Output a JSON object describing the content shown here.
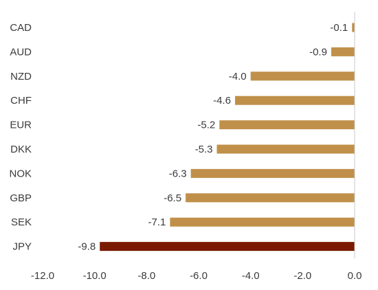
{
  "chart_data": {
    "type": "bar",
    "orientation": "horizontal",
    "categories": [
      "CAD",
      "AUD",
      "NZD",
      "CHF",
      "EUR",
      "DKK",
      "NOK",
      "GBP",
      "SEK",
      "JPY"
    ],
    "values": [
      -0.1,
      -0.9,
      -4.0,
      -4.6,
      -5.2,
      -5.3,
      -6.3,
      -6.5,
      -7.1,
      -9.8
    ],
    "value_labels": [
      "-0.1",
      "-0.9",
      "-4.0",
      "-4.6",
      "-5.2",
      "-5.3",
      "-6.3",
      "-6.5",
      "-7.1",
      "-9.8"
    ],
    "xlim": [
      -12.0,
      0.0
    ],
    "x_ticks": [
      "-12.0",
      "-10.0",
      "-8.0",
      "-6.0",
      "-4.0",
      "-2.0",
      "0.0"
    ],
    "x_tick_values": [
      -12,
      -10,
      -8,
      -6,
      -4,
      -2,
      0
    ],
    "title": "",
    "xlabel": "",
    "ylabel": "",
    "grid": false,
    "legend": "none",
    "colors": {
      "bar": "#c0904a",
      "highlight": "#7a1a00",
      "highlight_category": "JPY",
      "axis": "#c8c8c8",
      "text": "#3a3a3a"
    }
  }
}
